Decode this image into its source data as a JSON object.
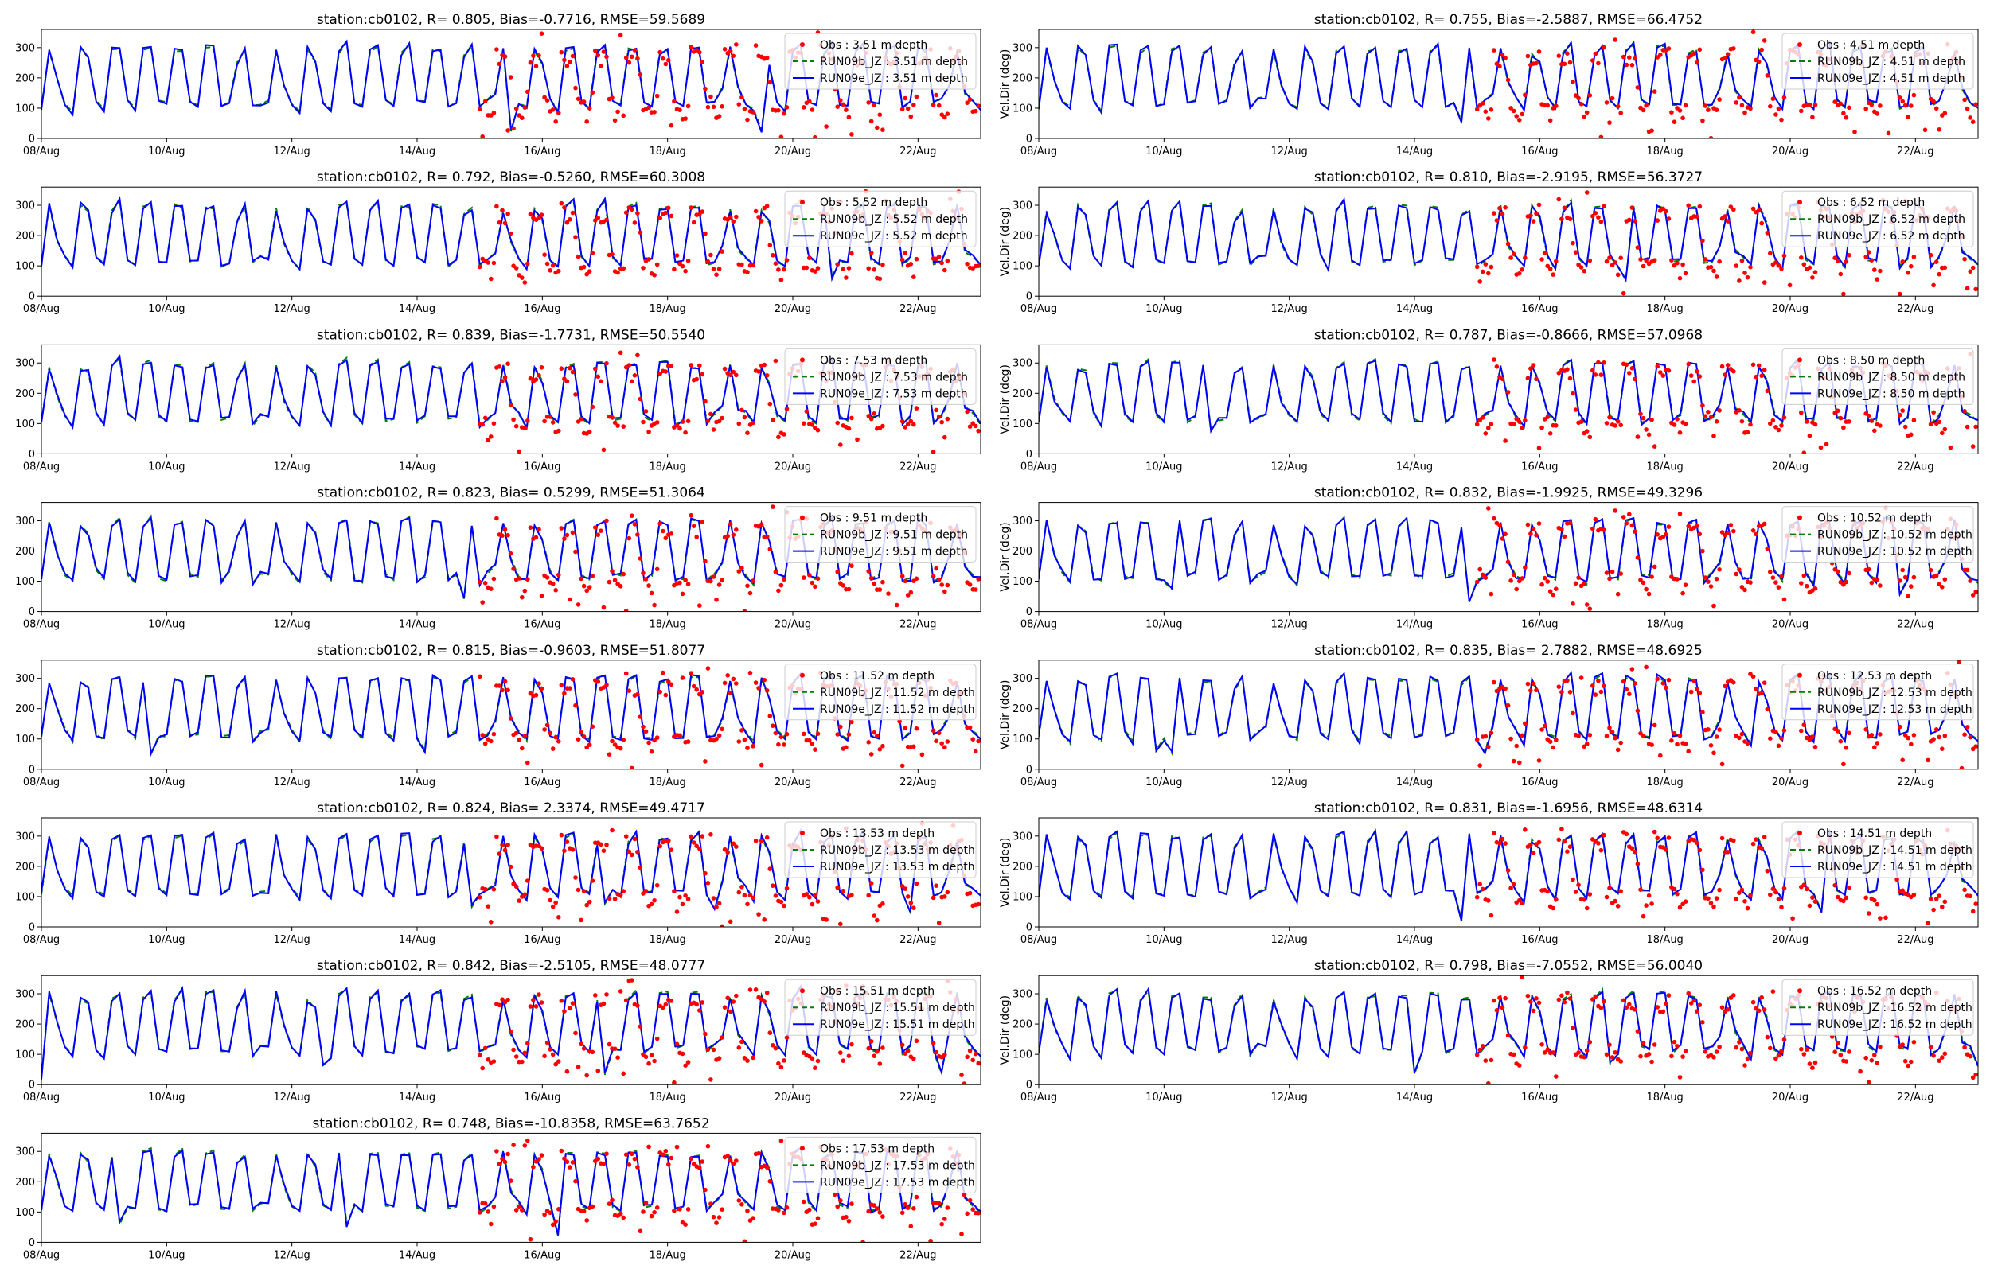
{
  "chart_data": {
    "type": "line",
    "station": "cb0102",
    "x_tick_labels": [
      "08/Aug",
      "10/Aug",
      "12/Aug",
      "14/Aug",
      "16/Aug",
      "18/Aug",
      "20/Aug",
      "22/Aug"
    ],
    "x_range": [
      "08/Aug",
      "23/Aug"
    ],
    "y_ticks": [
      0,
      100,
      200,
      300
    ],
    "ylim": [
      0,
      360
    ],
    "right_column_ylabel": "Vel.Dir (deg)",
    "legend_position": "upper-right",
    "grid": false,
    "series_styles": {
      "obs": {
        "color": "#ff0000",
        "marker": "dot"
      },
      "run09b": {
        "color": "#008000",
        "line": "dashed"
      },
      "run09e": {
        "color": "#0000ff",
        "line": "solid"
      }
    },
    "panels": [
      {
        "title": "station:cb0102, R= 0.805, Bias=-0.7716, RMSE=59.5689",
        "ylabel": "",
        "legend": [
          "Obs : 3.51 m depth",
          "RUN09b_JZ : 3.51 m depth",
          "RUN09e_JZ : 3.51 m depth"
        ]
      },
      {
        "title": "station:cb0102, R= 0.755, Bias=-2.5887, RMSE=66.4752",
        "ylabel": "Vel.Dir (deg)",
        "legend": [
          "Obs : 4.51 m depth",
          "RUN09b_JZ : 4.51 m depth",
          "RUN09e_JZ : 4.51 m depth"
        ]
      },
      {
        "title": "station:cb0102, R= 0.792, Bias=-0.5260, RMSE=60.3008",
        "ylabel": "",
        "legend": [
          "Obs : 5.52 m depth",
          "RUN09b_JZ : 5.52 m depth",
          "RUN09e_JZ : 5.52 m depth"
        ]
      },
      {
        "title": "station:cb0102, R= 0.810, Bias=-2.9195, RMSE=56.3727",
        "ylabel": "Vel.Dir (deg)",
        "legend": [
          "Obs : 6.52 m depth",
          "RUN09b_JZ : 6.52 m depth",
          "RUN09e_JZ : 6.52 m depth"
        ]
      },
      {
        "title": "station:cb0102, R= 0.839, Bias=-1.7731, RMSE=50.5540",
        "ylabel": "",
        "legend": [
          "Obs : 7.53 m depth",
          "RUN09b_JZ : 7.53 m depth",
          "RUN09e_JZ : 7.53 m depth"
        ]
      },
      {
        "title": "station:cb0102, R= 0.787, Bias=-0.8666, RMSE=57.0968",
        "ylabel": "Vel.Dir (deg)",
        "legend": [
          "Obs : 8.50 m depth",
          "RUN09b_JZ : 8.50 m depth",
          "RUN09e_JZ : 8.50 m depth"
        ]
      },
      {
        "title": "station:cb0102, R= 0.823, Bias= 0.5299, RMSE=51.3064",
        "ylabel": "",
        "legend": [
          "Obs : 9.51 m depth",
          "RUN09b_JZ : 9.51 m depth",
          "RUN09e_JZ : 9.51 m depth"
        ]
      },
      {
        "title": "station:cb0102, R= 0.832, Bias=-1.9925, RMSE=49.3296",
        "ylabel": "Vel.Dir (deg)",
        "legend": [
          "Obs : 10.52 m depth",
          "RUN09b_JZ : 10.52 m depth",
          "RUN09e_JZ : 10.52 m depth"
        ]
      },
      {
        "title": "station:cb0102, R= 0.815, Bias=-0.9603, RMSE=51.8077",
        "ylabel": "",
        "legend": [
          "Obs : 11.52 m depth",
          "RUN09b_JZ : 11.52 m depth",
          "RUN09e_JZ : 11.52 m depth"
        ]
      },
      {
        "title": "station:cb0102, R= 0.835, Bias= 2.7882, RMSE=48.6925",
        "ylabel": "Vel.Dir (deg)",
        "legend": [
          "Obs : 12.53 m depth",
          "RUN09b_JZ : 12.53 m depth",
          "RUN09e_JZ : 12.53 m depth"
        ]
      },
      {
        "title": "station:cb0102, R= 0.824, Bias= 2.3374, RMSE=49.4717",
        "ylabel": "",
        "legend": [
          "Obs : 13.53 m depth",
          "RUN09b_JZ : 13.53 m depth",
          "RUN09e_JZ : 13.53 m depth"
        ]
      },
      {
        "title": "station:cb0102, R= 0.831, Bias=-1.6956, RMSE=48.6314",
        "ylabel": "Vel.Dir (deg)",
        "legend": [
          "Obs : 14.51 m depth",
          "RUN09b_JZ : 14.51 m depth",
          "RUN09e_JZ : 14.51 m depth"
        ]
      },
      {
        "title": "station:cb0102, R= 0.842, Bias=-2.5105, RMSE=48.0777",
        "ylabel": "",
        "legend": [
          "Obs : 15.51 m depth",
          "RUN09b_JZ : 15.51 m depth",
          "RUN09e_JZ : 15.51 m depth"
        ]
      },
      {
        "title": "station:cb0102, R= 0.798, Bias=-7.0552, RMSE=56.0040",
        "ylabel": "Vel.Dir (deg)",
        "legend": [
          "Obs : 16.52 m depth",
          "RUN09b_JZ : 16.52 m depth",
          "RUN09e_JZ : 16.52 m depth"
        ]
      },
      {
        "title": "station:cb0102, R= 0.748, Bias=-10.8358, RMSE=63.7652",
        "ylabel": "",
        "legend": [
          "Obs : 17.53 m depth",
          "RUN09b_JZ : 17.53 m depth",
          "RUN09e_JZ : 17.53 m depth"
        ]
      }
    ]
  }
}
